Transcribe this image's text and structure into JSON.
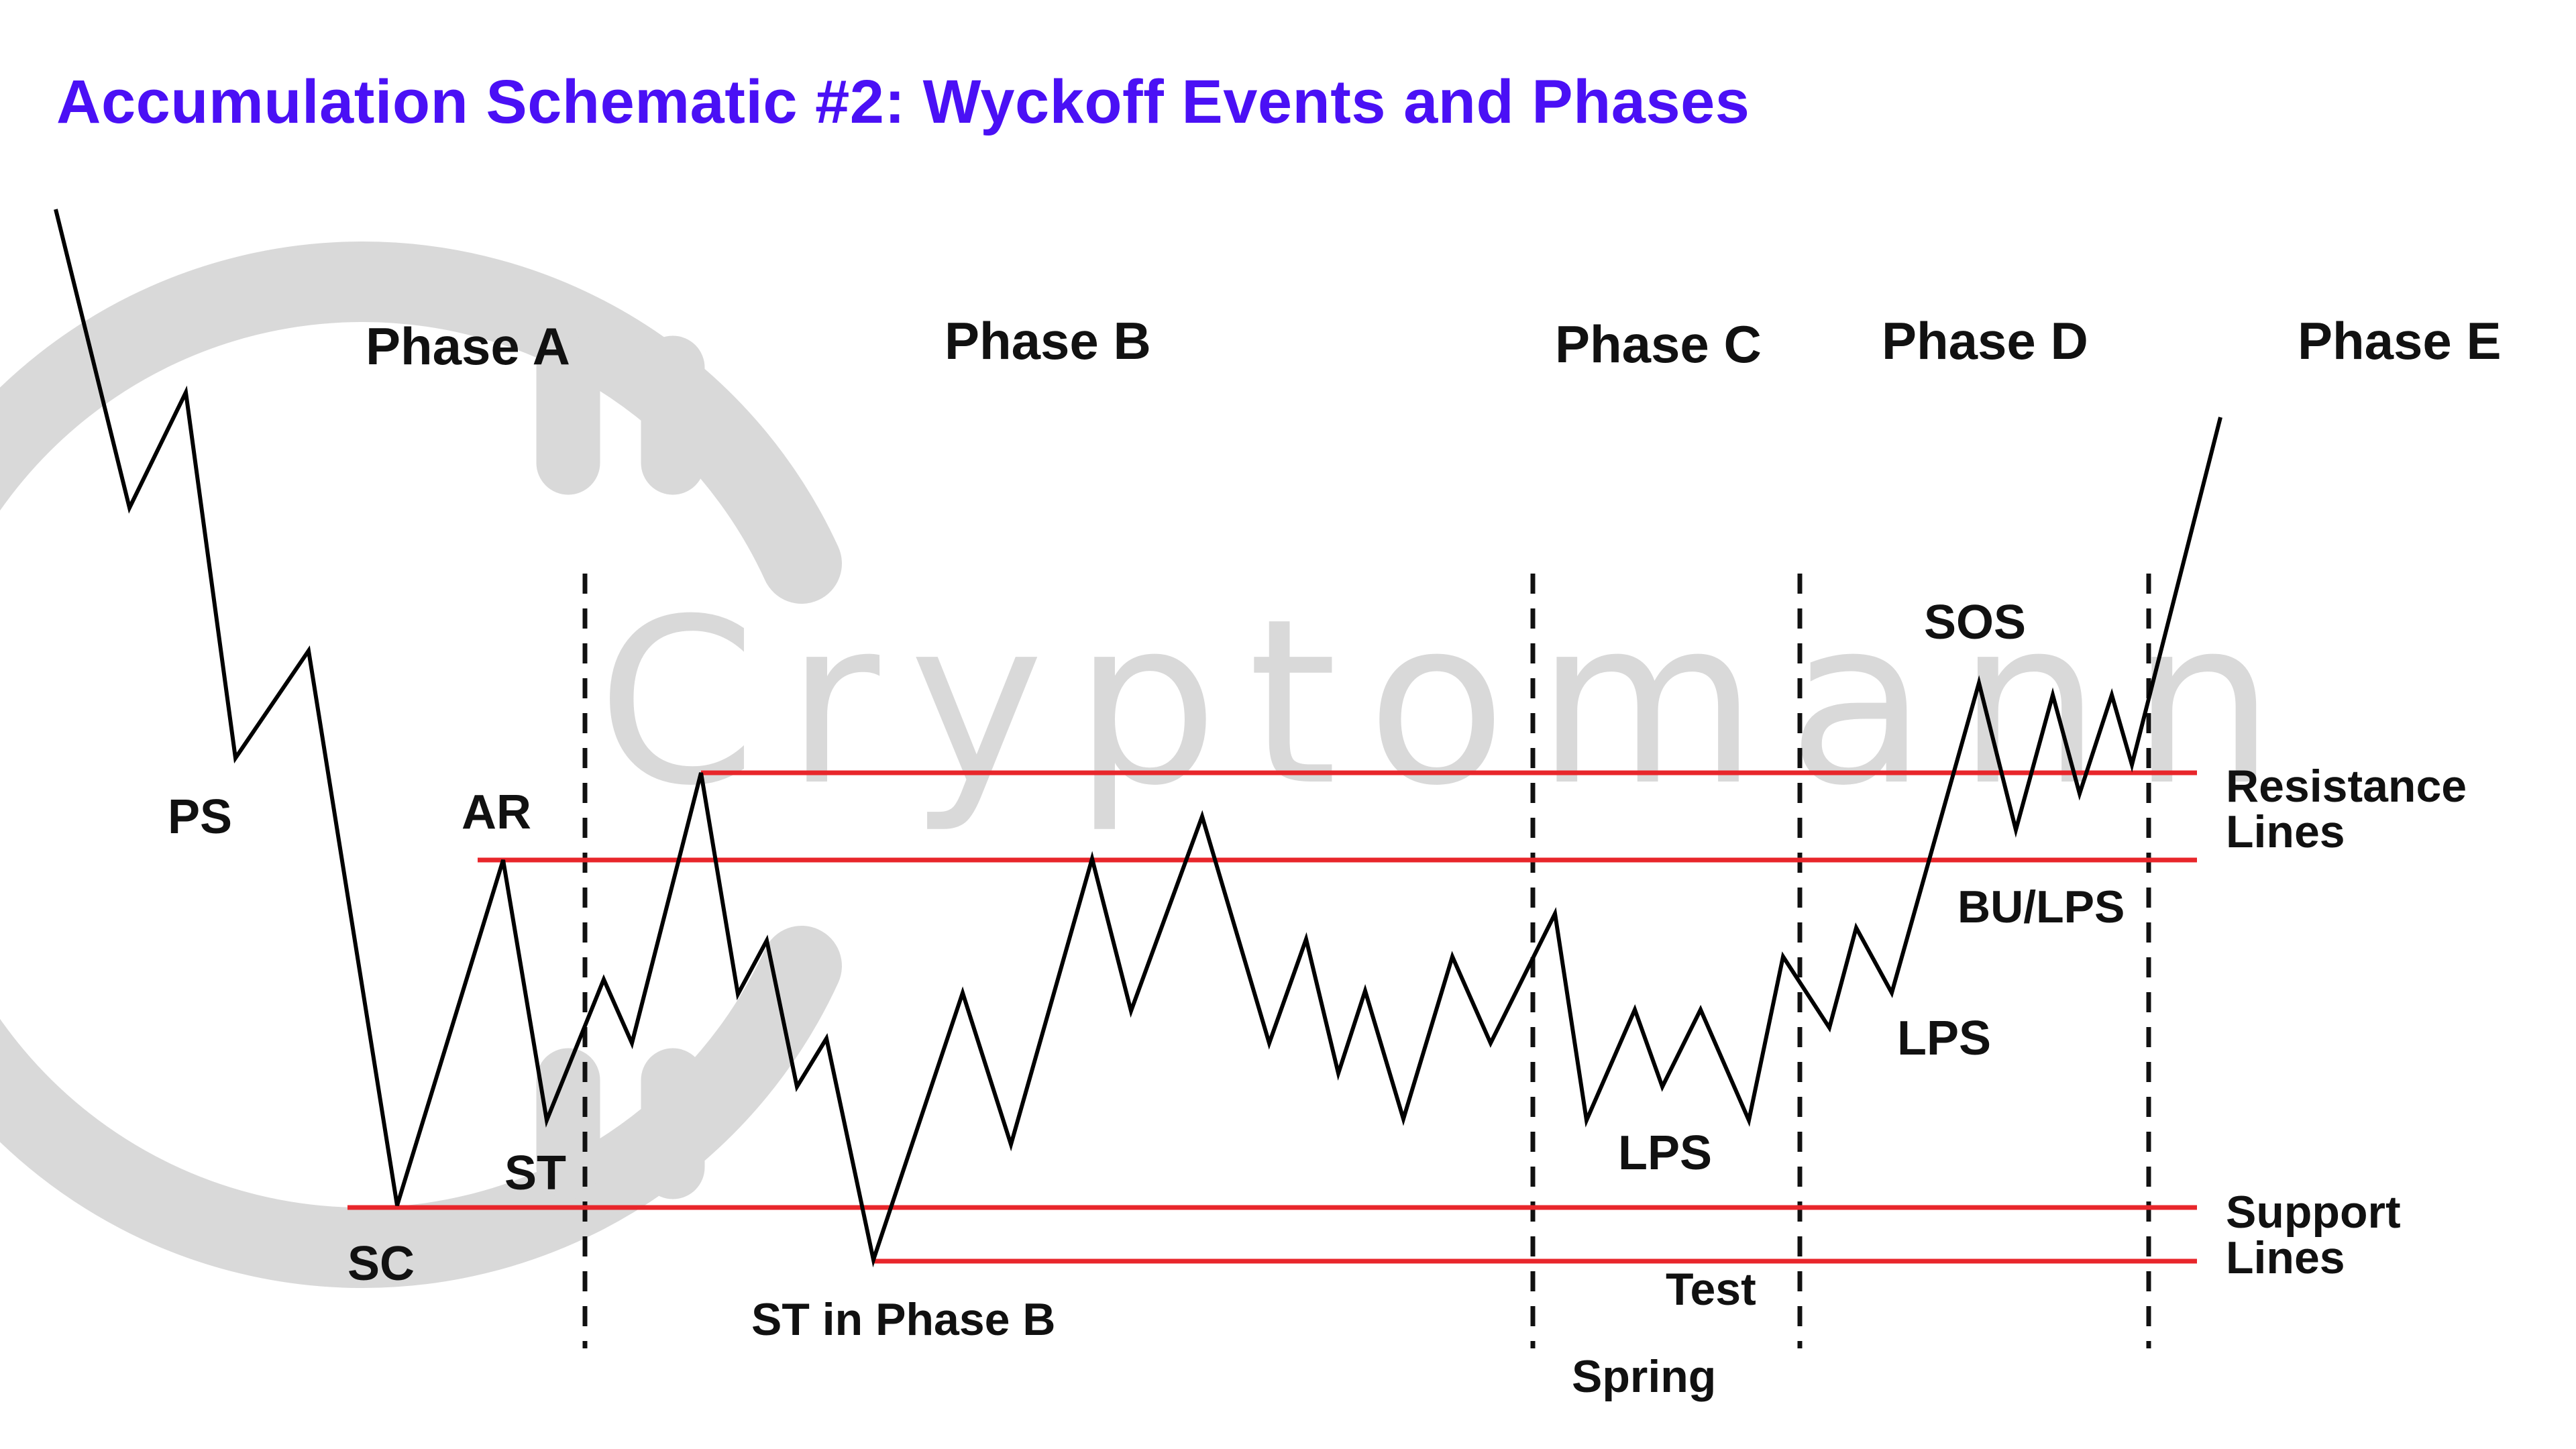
{
  "title": "Accumulation Schematic #2: Wyckoff Events and Phases",
  "watermark": "Cryptomann",
  "colors": {
    "title": "#4a10f5",
    "lines": "#e8262b",
    "price": "#000000",
    "watermark": "#d9d9d9"
  },
  "phases": [
    "Phase A",
    "Phase B",
    "Phase C",
    "Phase D",
    "Phase E"
  ],
  "events": {
    "ps": "PS",
    "sc": "SC",
    "ar": "AR",
    "st": "ST",
    "st_phase_b": "ST in Phase B",
    "lps_c": "LPS",
    "test": "Test",
    "spring": "Spring",
    "sos": "SOS",
    "bu_lps": "BU/LPS",
    "lps_d": "LPS"
  },
  "line_labels": {
    "resistance_1": "Resistance",
    "resistance_2": "Lines",
    "support_1": "Support",
    "support_2": "Lines"
  }
}
